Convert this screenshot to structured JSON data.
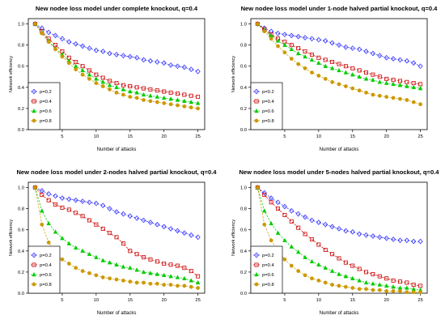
{
  "chart_data": [
    {
      "type": "line",
      "title": "New nodee loss model under complete knockout, q=0.4",
      "xlabel": "Number of attacks",
      "ylabel": "Network efficiency",
      "xlim": [
        0,
        26
      ],
      "ylim": [
        0,
        1.05
      ],
      "xticks": [
        "5",
        "10",
        "15",
        "20",
        "25"
      ],
      "yticks": [
        "0.0",
        "0.2",
        "0.4",
        "0.6",
        "0.8",
        "1.0"
      ],
      "legend_position": "bottom-left",
      "x": [
        1,
        2,
        3,
        4,
        5,
        6,
        7,
        8,
        9,
        10,
        11,
        12,
        13,
        14,
        15,
        16,
        17,
        18,
        19,
        20,
        21,
        22,
        23,
        24,
        25
      ],
      "series": [
        {
          "name": "p=0.2",
          "color": "#3333ff",
          "marker": "diamond-open",
          "values": [
            1.0,
            0.96,
            0.92,
            0.89,
            0.86,
            0.83,
            0.81,
            0.79,
            0.77,
            0.75,
            0.74,
            0.72,
            0.71,
            0.7,
            0.69,
            0.68,
            0.66,
            0.65,
            0.64,
            0.63,
            0.61,
            0.6,
            0.59,
            0.57,
            0.55
          ]
        },
        {
          "name": "p=0.4",
          "color": "#cc0000",
          "marker": "square-open",
          "values": [
            1.0,
            0.93,
            0.86,
            0.8,
            0.74,
            0.68,
            0.64,
            0.6,
            0.56,
            0.52,
            0.49,
            0.46,
            0.44,
            0.42,
            0.41,
            0.4,
            0.39,
            0.38,
            0.37,
            0.36,
            0.35,
            0.34,
            0.33,
            0.32,
            0.31
          ]
        },
        {
          "name": "p=0.6",
          "color": "#00cc00",
          "marker": "triangle",
          "values": [
            1.0,
            0.92,
            0.84,
            0.77,
            0.71,
            0.65,
            0.6,
            0.56,
            0.52,
            0.48,
            0.45,
            0.42,
            0.4,
            0.38,
            0.36,
            0.35,
            0.33,
            0.32,
            0.31,
            0.3,
            0.29,
            0.28,
            0.27,
            0.26,
            0.25
          ]
        },
        {
          "name": "p=0.8",
          "color": "#cc9900",
          "marker": "circle",
          "values": [
            1.0,
            0.91,
            0.83,
            0.76,
            0.69,
            0.63,
            0.57,
            0.52,
            0.48,
            0.44,
            0.41,
            0.38,
            0.35,
            0.33,
            0.31,
            0.3,
            0.28,
            0.27,
            0.26,
            0.25,
            0.24,
            0.23,
            0.22,
            0.21,
            0.2
          ]
        }
      ]
    },
    {
      "type": "line",
      "title": "New nodee loss model under 1-node halved partial knockout, q=0.4",
      "xlabel": "Number of attacks",
      "ylabel": "Network efficiency",
      "xlim": [
        0,
        26
      ],
      "ylim": [
        0,
        1.05
      ],
      "xticks": [
        "5",
        "10",
        "15",
        "20",
        "25"
      ],
      "yticks": [
        "0.0",
        "0.2",
        "0.4",
        "0.6",
        "0.8",
        "1.0"
      ],
      "legend_position": "bottom-left",
      "x": [
        1,
        2,
        3,
        4,
        5,
        6,
        7,
        8,
        9,
        10,
        11,
        12,
        13,
        14,
        15,
        16,
        17,
        18,
        19,
        20,
        21,
        22,
        23,
        24,
        25
      ],
      "series": [
        {
          "name": "p=0.2",
          "color": "#3333ff",
          "marker": "diamond-open",
          "values": [
            1.0,
            0.96,
            0.93,
            0.91,
            0.9,
            0.89,
            0.88,
            0.87,
            0.86,
            0.85,
            0.84,
            0.82,
            0.8,
            0.78,
            0.77,
            0.76,
            0.74,
            0.72,
            0.7,
            0.68,
            0.67,
            0.66,
            0.65,
            0.63,
            0.6
          ]
        },
        {
          "name": "p=0.4",
          "color": "#cc0000",
          "marker": "square-open",
          "values": [
            1.0,
            0.95,
            0.9,
            0.86,
            0.83,
            0.8,
            0.77,
            0.74,
            0.71,
            0.68,
            0.66,
            0.64,
            0.62,
            0.6,
            0.58,
            0.56,
            0.54,
            0.52,
            0.5,
            0.48,
            0.47,
            0.46,
            0.45,
            0.44,
            0.43
          ]
        },
        {
          "name": "p=0.6",
          "color": "#00cc00",
          "marker": "triangle",
          "values": [
            1.0,
            0.94,
            0.89,
            0.84,
            0.8,
            0.76,
            0.72,
            0.69,
            0.66,
            0.63,
            0.6,
            0.58,
            0.56,
            0.54,
            0.52,
            0.5,
            0.48,
            0.47,
            0.45,
            0.44,
            0.43,
            0.42,
            0.41,
            0.4,
            0.39
          ]
        },
        {
          "name": "p=0.8",
          "color": "#cc9900",
          "marker": "circle",
          "values": [
            1.0,
            0.93,
            0.86,
            0.79,
            0.73,
            0.67,
            0.62,
            0.58,
            0.54,
            0.51,
            0.48,
            0.45,
            0.43,
            0.41,
            0.39,
            0.37,
            0.35,
            0.33,
            0.32,
            0.31,
            0.3,
            0.29,
            0.28,
            0.26,
            0.24
          ]
        }
      ]
    },
    {
      "type": "line",
      "title": "New nodee loss model under 2-nodes halved partial knockout, q=0.4",
      "xlabel": "Number of attacks",
      "ylabel": "Network efficiency",
      "xlim": [
        0,
        26
      ],
      "ylim": [
        0,
        1.05
      ],
      "xticks": [
        "5",
        "10",
        "15",
        "20",
        "25"
      ],
      "yticks": [
        "0.0",
        "0.2",
        "0.4",
        "0.6",
        "0.8",
        "1.0"
      ],
      "legend_position": "bottom-left",
      "x": [
        1,
        2,
        3,
        4,
        5,
        6,
        7,
        8,
        9,
        10,
        11,
        12,
        13,
        14,
        15,
        16,
        17,
        18,
        19,
        20,
        21,
        22,
        23,
        24,
        25
      ],
      "series": [
        {
          "name": "p=0.2",
          "color": "#3333ff",
          "marker": "diamond-open",
          "values": [
            1.0,
            0.97,
            0.94,
            0.92,
            0.9,
            0.89,
            0.88,
            0.87,
            0.86,
            0.85,
            0.83,
            0.8,
            0.77,
            0.75,
            0.73,
            0.71,
            0.69,
            0.67,
            0.65,
            0.63,
            0.61,
            0.59,
            0.57,
            0.55,
            0.53
          ]
        },
        {
          "name": "p=0.4",
          "color": "#cc0000",
          "marker": "square-open",
          "values": [
            1.0,
            0.93,
            0.88,
            0.84,
            0.81,
            0.79,
            0.76,
            0.73,
            0.69,
            0.65,
            0.61,
            0.57,
            0.53,
            0.47,
            0.4,
            0.37,
            0.34,
            0.32,
            0.3,
            0.28,
            0.27,
            0.26,
            0.24,
            0.21,
            0.16
          ]
        },
        {
          "name": "p=0.6",
          "color": "#00cc00",
          "marker": "triangle",
          "values": [
            1.0,
            0.78,
            0.66,
            0.58,
            0.52,
            0.47,
            0.43,
            0.4,
            0.37,
            0.34,
            0.31,
            0.29,
            0.27,
            0.25,
            0.24,
            0.22,
            0.2,
            0.19,
            0.18,
            0.17,
            0.16,
            0.15,
            0.14,
            0.12,
            0.1
          ]
        },
        {
          "name": "p=0.8",
          "color": "#cc9900",
          "marker": "circle",
          "values": [
            1.0,
            0.65,
            0.48,
            0.38,
            0.32,
            0.28,
            0.24,
            0.21,
            0.19,
            0.17,
            0.15,
            0.14,
            0.13,
            0.12,
            0.11,
            0.1,
            0.1,
            0.09,
            0.09,
            0.08,
            0.08,
            0.07,
            0.07,
            0.06,
            0.05
          ]
        }
      ]
    },
    {
      "type": "line",
      "title": "New nodee loss model under 5-nodes halved partial knockout, q=0.4",
      "xlabel": "Number of attacks",
      "ylabel": "Network efficiency",
      "xlim": [
        0,
        26
      ],
      "ylim": [
        0,
        1.05
      ],
      "xticks": [
        "5",
        "10",
        "15",
        "20",
        "25"
      ],
      "yticks": [
        "0.0",
        "0.2",
        "0.4",
        "0.6",
        "0.8",
        "1.0"
      ],
      "legend_position": "bottom-left",
      "x": [
        1,
        2,
        3,
        4,
        5,
        6,
        7,
        8,
        9,
        10,
        11,
        12,
        13,
        14,
        15,
        16,
        17,
        18,
        19,
        20,
        21,
        22,
        23,
        24,
        25
      ],
      "series": [
        {
          "name": "p=0.2",
          "color": "#3333ff",
          "marker": "diamond-open",
          "values": [
            1.0,
            0.95,
            0.9,
            0.86,
            0.82,
            0.78,
            0.75,
            0.72,
            0.69,
            0.67,
            0.65,
            0.63,
            0.61,
            0.59,
            0.58,
            0.56,
            0.55,
            0.54,
            0.53,
            0.52,
            0.51,
            0.5,
            0.5,
            0.49,
            0.49
          ]
        },
        {
          "name": "p=0.4",
          "color": "#cc0000",
          "marker": "square-open",
          "values": [
            1.0,
            0.93,
            0.86,
            0.8,
            0.74,
            0.68,
            0.62,
            0.56,
            0.51,
            0.46,
            0.41,
            0.37,
            0.33,
            0.29,
            0.26,
            0.23,
            0.2,
            0.18,
            0.16,
            0.14,
            0.12,
            0.11,
            0.1,
            0.08,
            0.07
          ]
        },
        {
          "name": "p=0.6",
          "color": "#00cc00",
          "marker": "triangle",
          "values": [
            1.0,
            0.78,
            0.66,
            0.57,
            0.5,
            0.44,
            0.39,
            0.34,
            0.3,
            0.27,
            0.24,
            0.21,
            0.18,
            0.16,
            0.14,
            0.12,
            0.1,
            0.09,
            0.08,
            0.07,
            0.06,
            0.05,
            0.05,
            0.04,
            0.03
          ]
        },
        {
          "name": "p=0.8",
          "color": "#cc9900",
          "marker": "circle",
          "values": [
            1.0,
            0.65,
            0.5,
            0.4,
            0.32,
            0.26,
            0.21,
            0.17,
            0.14,
            0.12,
            0.1,
            0.08,
            0.07,
            0.06,
            0.05,
            0.04,
            0.04,
            0.03,
            0.03,
            0.02,
            0.02,
            0.02,
            0.01,
            0.01,
            0.01
          ]
        }
      ]
    }
  ]
}
